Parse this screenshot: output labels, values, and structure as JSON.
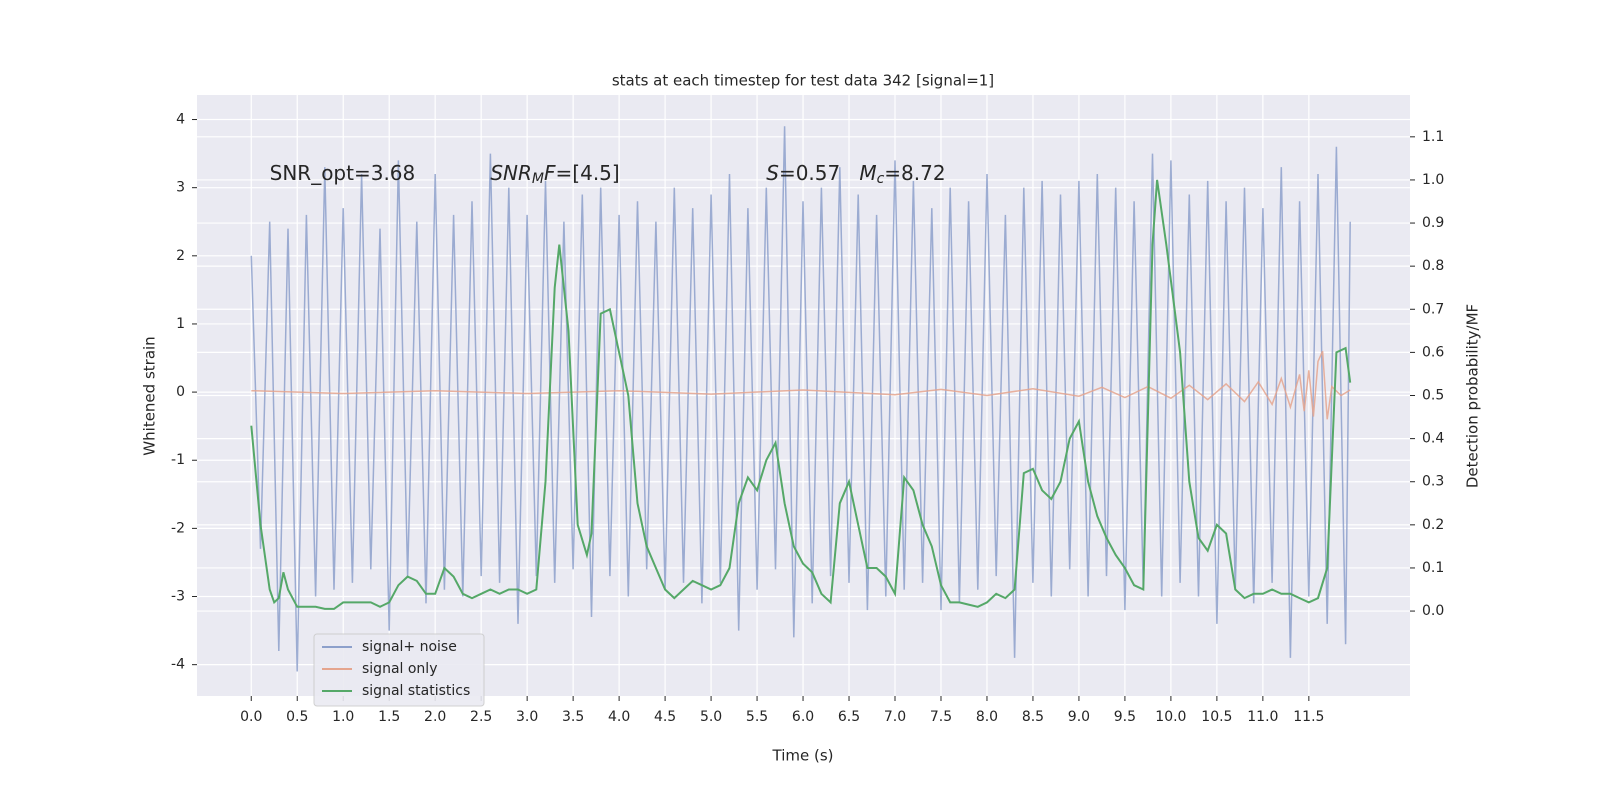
{
  "chart_data": {
    "type": "line",
    "title": "stats at each timestep for test data 342 [signal=1]",
    "x_label": "Time (s)",
    "y_label": "Whitened strain",
    "y2_label": "Detection probability/MF",
    "annotations": [
      {
        "x": 0.2,
        "y": 3.2,
        "parts": [
          {
            "text": "SNR_opt=3.68",
            "italic": false
          }
        ]
      },
      {
        "x": 2.6,
        "y": 3.2,
        "parts": [
          {
            "text": "SNR",
            "italic": true
          },
          {
            "text": "M",
            "italic": true,
            "sub": true
          },
          {
            "text": "F",
            "italic": true
          },
          {
            "text": "=[4.5]",
            "italic": false
          }
        ]
      },
      {
        "x": 5.6,
        "y": 3.2,
        "parts": [
          {
            "text": "S",
            "italic": true
          },
          {
            "text": "=0.57   ",
            "italic": false
          },
          {
            "text": "M",
            "italic": true
          },
          {
            "text": "c",
            "italic": true,
            "sub": true
          },
          {
            "text": "=8.72",
            "italic": false
          }
        ]
      }
    ],
    "xlim": [
      -0.59,
      12.6
    ],
    "ylim": [
      -4.46,
      4.36
    ],
    "y2lim": [
      -0.197,
      1.197
    ],
    "xticks": [
      {
        "value": 0,
        "label": "0.0"
      },
      {
        "value": 0.5,
        "label": "0.5"
      },
      {
        "value": 1,
        "label": "1.0"
      },
      {
        "value": 1.5,
        "label": "1.5"
      },
      {
        "value": 2,
        "label": "2.0"
      },
      {
        "value": 2.5,
        "label": "2.5"
      },
      {
        "value": 3,
        "label": "3.0"
      },
      {
        "value": 3.5,
        "label": "3.5"
      },
      {
        "value": 4,
        "label": "4.0"
      },
      {
        "value": 4.5,
        "label": "4.5"
      },
      {
        "value": 5,
        "label": "5.0"
      },
      {
        "value": 5.5,
        "label": "5.5"
      },
      {
        "value": 6,
        "label": "6.0"
      },
      {
        "value": 6.5,
        "label": "6.5"
      },
      {
        "value": 7,
        "label": "7.0"
      },
      {
        "value": 7.5,
        "label": "7.5"
      },
      {
        "value": 8,
        "label": "8.0"
      },
      {
        "value": 8.5,
        "label": "8.5"
      },
      {
        "value": 9,
        "label": "9.0"
      },
      {
        "value": 9.5,
        "label": "9.5"
      },
      {
        "value": 10,
        "label": "10.0"
      },
      {
        "value": 10.5,
        "label": "10.5"
      },
      {
        "value": 11,
        "label": "11.0"
      },
      {
        "value": 11.5,
        "label": "11.5"
      }
    ],
    "yticks": [
      -4,
      -3,
      -2,
      -1,
      0,
      1,
      2,
      3,
      4
    ],
    "y2ticks": [
      {
        "value": 0,
        "label": "0.0"
      },
      {
        "value": 0.1,
        "label": "0.1"
      },
      {
        "value": 0.2,
        "label": "0.2"
      },
      {
        "value": 0.3,
        "label": "0.3"
      },
      {
        "value": 0.4,
        "label": "0.4"
      },
      {
        "value": 0.5,
        "label": "0.5"
      },
      {
        "value": 0.6,
        "label": "0.6"
      },
      {
        "value": 0.7,
        "label": "0.7"
      },
      {
        "value": 0.8,
        "label": "0.8"
      },
      {
        "value": 0.9,
        "label": "0.9"
      },
      {
        "value": 1,
        "label": "1.0"
      },
      {
        "value": 1.1,
        "label": "1.1"
      }
    ],
    "grid": true,
    "legend": "lower left",
    "series": [
      {
        "name": "signal+ noise",
        "color": "#8da0cb",
        "axis": "y",
        "x": [
          0,
          0.1,
          0.2,
          0.3,
          0.4,
          0.5,
          0.6,
          0.7,
          0.8,
          0.9,
          1,
          1.1,
          1.2,
          1.3,
          1.4,
          1.5,
          1.6,
          1.7,
          1.8,
          1.9,
          2,
          2.1,
          2.2,
          2.3,
          2.4,
          2.5,
          2.6,
          2.7,
          2.8,
          2.9,
          3,
          3.1,
          3.2,
          3.3,
          3.4,
          3.5,
          3.6,
          3.7,
          3.8,
          3.9,
          4,
          4.1,
          4.2,
          4.3,
          4.4,
          4.5,
          4.6,
          4.7,
          4.8,
          4.9,
          5,
          5.1,
          5.2,
          5.3,
          5.4,
          5.5,
          5.6,
          5.7,
          5.8,
          5.9,
          6,
          6.1,
          6.2,
          6.3,
          6.4,
          6.5,
          6.6,
          6.7,
          6.8,
          6.9,
          7,
          7.1,
          7.2,
          7.3,
          7.4,
          7.5,
          7.6,
          7.7,
          7.8,
          7.9,
          8,
          8.1,
          8.2,
          8.3,
          8.4,
          8.5,
          8.6,
          8.7,
          8.8,
          8.9,
          9,
          9.1,
          9.2,
          9.3,
          9.4,
          9.5,
          9.6,
          9.7,
          9.8,
          9.9,
          10,
          10.1,
          10.2,
          10.3,
          10.4,
          10.5,
          10.6,
          10.7,
          10.8,
          10.9,
          11,
          11.1,
          11.2,
          11.3,
          11.4,
          11.5,
          11.6,
          11.7,
          11.8,
          11.9,
          11.95
        ],
        "values": [
          2.0,
          -2.3,
          2.5,
          -3.8,
          2.4,
          -4.1,
          2.6,
          -3.0,
          3.3,
          -2.9,
          2.7,
          -2.8,
          3.2,
          -2.6,
          2.4,
          -3.5,
          3.4,
          -2.7,
          2.5,
          -3.1,
          3.2,
          -2.9,
          2.6,
          -3.0,
          2.8,
          -2.7,
          3.5,
          -2.8,
          3.0,
          -3.4,
          2.6,
          -2.7,
          3.1,
          -2.8,
          2.5,
          -2.6,
          2.9,
          -3.3,
          3.0,
          -2.7,
          2.6,
          -3.0,
          2.8,
          -2.6,
          2.5,
          -2.9,
          3.0,
          -2.8,
          2.7,
          -3.1,
          2.9,
          -2.8,
          3.2,
          -3.5,
          2.7,
          -2.9,
          3.0,
          -2.6,
          3.9,
          -3.6,
          2.8,
          -3.1,
          3.0,
          -2.7,
          3.3,
          -2.8,
          2.9,
          -3.2,
          2.6,
          -3.0,
          3.4,
          -2.9,
          3.1,
          -2.8,
          2.7,
          -3.2,
          3.0,
          -3.1,
          2.8,
          -2.9,
          3.2,
          -2.7,
          2.6,
          -3.9,
          3.0,
          -2.8,
          3.1,
          -3.0,
          2.9,
          -2.6,
          3.1,
          -3.0,
          3.2,
          -2.7,
          3.0,
          -3.2,
          2.8,
          -2.9,
          3.5,
          -3.0,
          3.4,
          -2.8,
          2.9,
          -3.0,
          3.1,
          -3.4,
          2.8,
          -2.9,
          3.0,
          -3.1,
          2.7,
          -2.8,
          3.3,
          -3.9,
          2.8,
          -3.0,
          3.2,
          -3.4,
          3.6,
          -3.7,
          2.5
        ]
      },
      {
        "name": "signal only",
        "color": "#e5a58e",
        "axis": "y",
        "x": [
          0,
          1,
          2,
          3,
          4,
          5,
          6,
          7,
          7.5,
          8,
          8.5,
          9,
          9.25,
          9.5,
          9.75,
          10,
          10.2,
          10.4,
          10.6,
          10.8,
          10.95,
          11.1,
          11.2,
          11.3,
          11.4,
          11.45,
          11.5,
          11.55,
          11.6,
          11.65,
          11.7,
          11.75,
          11.85,
          11.95
        ],
        "values": [
          0.02,
          -0.02,
          0.02,
          -0.02,
          0.02,
          -0.03,
          0.03,
          -0.04,
          0.04,
          -0.05,
          0.05,
          -0.06,
          0.07,
          -0.08,
          0.08,
          -0.09,
          0.1,
          -0.11,
          0.12,
          -0.14,
          0.15,
          -0.18,
          0.2,
          -0.22,
          0.26,
          -0.28,
          0.32,
          -0.36,
          0.45,
          0.6,
          -0.4,
          0.08,
          -0.05,
          0.03
        ]
      },
      {
        "name": "signal statistics",
        "color": "#55a868",
        "axis": "y2",
        "x": [
          0,
          0.1,
          0.2,
          0.25,
          0.3,
          0.35,
          0.4,
          0.5,
          0.6,
          0.7,
          0.8,
          0.9,
          1,
          1.1,
          1.2,
          1.3,
          1.4,
          1.5,
          1.6,
          1.7,
          1.8,
          1.9,
          2,
          2.1,
          2.2,
          2.3,
          2.4,
          2.5,
          2.6,
          2.7,
          2.8,
          2.9,
          3,
          3.1,
          3.2,
          3.3,
          3.35,
          3.45,
          3.55,
          3.65,
          3.7,
          3.8,
          3.9,
          4,
          4.1,
          4.2,
          4.3,
          4.4,
          4.5,
          4.6,
          4.7,
          4.8,
          4.9,
          5,
          5.1,
          5.2,
          5.3,
          5.4,
          5.5,
          5.6,
          5.7,
          5.8,
          5.9,
          6,
          6.1,
          6.2,
          6.3,
          6.4,
          6.5,
          6.6,
          6.7,
          6.8,
          6.9,
          7,
          7.1,
          7.2,
          7.3,
          7.4,
          7.5,
          7.6,
          7.7,
          7.8,
          7.9,
          8,
          8.1,
          8.2,
          8.3,
          8.4,
          8.5,
          8.6,
          8.7,
          8.8,
          8.9,
          9,
          9.1,
          9.2,
          9.3,
          9.4,
          9.5,
          9.6,
          9.7,
          9.8,
          9.85,
          9.95,
          10.1,
          10.2,
          10.3,
          10.4,
          10.5,
          10.6,
          10.7,
          10.8,
          10.9,
          11,
          11.1,
          11.2,
          11.3,
          11.4,
          11.5,
          11.6,
          11.7,
          11.8,
          11.9,
          11.95
        ],
        "values": [
          0.43,
          0.2,
          0.05,
          0.02,
          0.03,
          0.09,
          0.05,
          0.01,
          0.01,
          0.01,
          0.005,
          0.005,
          0.02,
          0.02,
          0.02,
          0.02,
          0.01,
          0.02,
          0.06,
          0.08,
          0.07,
          0.04,
          0.04,
          0.1,
          0.08,
          0.04,
          0.03,
          0.04,
          0.05,
          0.04,
          0.05,
          0.05,
          0.04,
          0.05,
          0.3,
          0.75,
          0.85,
          0.65,
          0.2,
          0.13,
          0.18,
          0.69,
          0.7,
          0.6,
          0.5,
          0.25,
          0.15,
          0.1,
          0.05,
          0.03,
          0.05,
          0.07,
          0.06,
          0.05,
          0.06,
          0.1,
          0.25,
          0.31,
          0.28,
          0.35,
          0.39,
          0.25,
          0.15,
          0.11,
          0.09,
          0.04,
          0.02,
          0.25,
          0.3,
          0.2,
          0.1,
          0.1,
          0.08,
          0.04,
          0.31,
          0.28,
          0.2,
          0.15,
          0.06,
          0.02,
          0.02,
          0.015,
          0.01,
          0.02,
          0.04,
          0.03,
          0.05,
          0.32,
          0.33,
          0.28,
          0.26,
          0.3,
          0.4,
          0.44,
          0.3,
          0.22,
          0.17,
          0.13,
          0.1,
          0.06,
          0.05,
          0.85,
          1.0,
          0.85,
          0.6,
          0.3,
          0.17,
          0.14,
          0.2,
          0.18,
          0.05,
          0.03,
          0.04,
          0.04,
          0.05,
          0.04,
          0.04,
          0.03,
          0.02,
          0.03,
          0.1,
          0.6,
          0.61,
          0.53
        ]
      }
    ]
  }
}
